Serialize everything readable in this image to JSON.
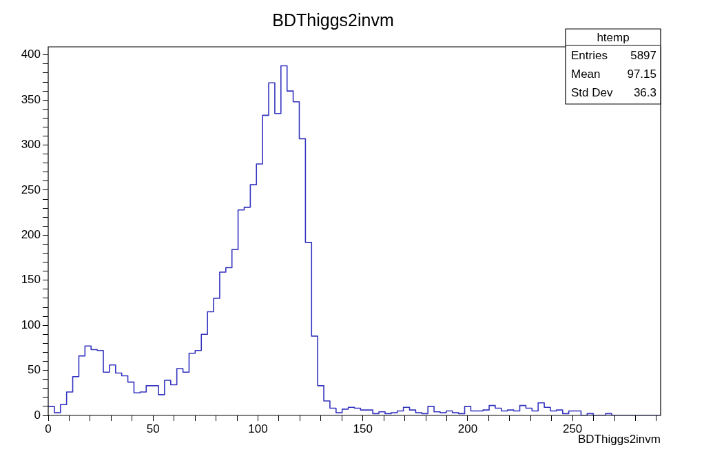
{
  "chart_data": {
    "type": "histogram",
    "title": "BDThiggs2invm",
    "xlabel": "BDThiggs2invm",
    "bins": [
      0,
      2.92,
      5.84,
      8.76,
      11.68,
      14.6,
      17.52,
      20.44,
      23.36,
      26.28,
      29.2,
      32.12,
      35.04,
      37.96,
      40.88,
      43.8,
      46.72,
      49.64,
      52.56,
      55.48,
      58.4,
      61.32,
      64.24,
      67.16,
      70.08,
      73,
      75.92,
      78.84,
      81.76,
      84.68,
      87.6,
      90.52,
      93.44,
      96.36,
      99.28,
      102.2,
      105.12,
      108.04,
      110.96,
      113.88,
      116.8,
      119.72,
      122.64,
      125.56,
      128.48,
      131.4,
      134.32,
      137.24,
      140.16,
      143.08,
      146,
      148.92,
      151.84,
      154.76,
      157.68,
      160.6,
      163.52,
      166.44,
      169.36,
      172.28,
      175.2,
      178.12,
      181.04,
      183.96,
      186.88,
      189.8,
      192.72,
      195.64,
      198.56,
      201.48,
      204.4,
      207.32,
      210.24,
      213.16,
      216.08,
      219,
      221.92,
      224.84,
      227.76,
      230.68,
      233.6,
      236.52,
      239.44,
      242.36,
      245.28,
      248.2,
      251.12,
      254.04,
      256.96,
      259.88,
      262.8,
      265.72,
      268.64,
      271.56,
      274.48,
      277.4,
      280.32,
      283.24,
      286.16,
      289.08,
      292
    ],
    "values": [
      10,
      3,
      12,
      26,
      43,
      66,
      77,
      73,
      72,
      48,
      56,
      47,
      44,
      37,
      25,
      26,
      33,
      33,
      23,
      39,
      34,
      52,
      48,
      69,
      72,
      90,
      115,
      130,
      159,
      164,
      184,
      228,
      231,
      256,
      279,
      333,
      369,
      335,
      388,
      360,
      348,
      307,
      192,
      88,
      33,
      16,
      8,
      3,
      7,
      9,
      8,
      6,
      6,
      2,
      4,
      2,
      3,
      5,
      9,
      6,
      3,
      2,
      10,
      4,
      3,
      5,
      3,
      2,
      10,
      5,
      5,
      6,
      11,
      8,
      5,
      6,
      5,
      11,
      8,
      5,
      14,
      9,
      5,
      6,
      2,
      5,
      5,
      0,
      2,
      0,
      0,
      2,
      0,
      0,
      0,
      0,
      0,
      0,
      0,
      0
    ],
    "color": "#3434c0",
    "xlim": [
      0,
      292
    ],
    "xticks": [
      0,
      {
        "value": 10,
        "label": null
      },
      {
        "value": 20,
        "label": null
      },
      {
        "value": 30,
        "label": null
      },
      {
        "value": 40,
        "label": null
      },
      50,
      {
        "value": 60,
        "label": null
      },
      {
        "value": 70,
        "label": null
      },
      {
        "value": 80,
        "label": null
      },
      {
        "value": 90,
        "label": null
      },
      100,
      {
        "value": 110,
        "label": null
      },
      {
        "value": 120,
        "label": null
      },
      {
        "value": 130,
        "label": null
      },
      {
        "value": 140,
        "label": null
      },
      150,
      {
        "value": 160,
        "label": null
      },
      {
        "value": 170,
        "label": null
      },
      {
        "value": 180,
        "label": null
      },
      {
        "value": 190,
        "label": null
      },
      200,
      {
        "value": 210,
        "label": null
      },
      {
        "value": 220,
        "label": null
      },
      {
        "value": 230,
        "label": null
      },
      {
        "value": 240,
        "label": null
      },
      250,
      {
        "value": 260,
        "label": null
      },
      {
        "value": 270,
        "label": null
      },
      {
        "value": 280,
        "label": null
      },
      {
        "value": 290,
        "label": null
      }
    ],
    "ylim": [
      0,
      409
    ],
    "yticks": [
      0,
      {
        "value": 10,
        "label": null
      },
      {
        "value": 20,
        "label": null
      },
      {
        "value": 30,
        "label": null
      },
      {
        "value": 40,
        "label": null
      },
      50,
      {
        "value": 60,
        "label": null
      },
      {
        "value": 70,
        "label": null
      },
      {
        "value": 80,
        "label": null
      },
      {
        "value": 90,
        "label": null
      },
      100,
      {
        "value": 110,
        "label": null
      },
      {
        "value": 120,
        "label": null
      },
      {
        "value": 130,
        "label": null
      },
      {
        "value": 140,
        "label": null
      },
      150,
      {
        "value": 160,
        "label": null
      },
      {
        "value": 170,
        "label": null
      },
      {
        "value": 180,
        "label": null
      },
      {
        "value": 190,
        "label": null
      },
      200,
      {
        "value": 210,
        "label": null
      },
      {
        "value": 220,
        "label": null
      },
      {
        "value": 230,
        "label": null
      },
      {
        "value": 240,
        "label": null
      },
      250,
      {
        "value": 260,
        "label": null
      },
      {
        "value": 270,
        "label": null
      },
      {
        "value": 280,
        "label": null
      },
      {
        "value": 290,
        "label": null
      },
      300,
      {
        "value": 310,
        "label": null
      },
      {
        "value": 320,
        "label": null
      },
      {
        "value": 330,
        "label": null
      },
      {
        "value": 340,
        "label": null
      },
      350,
      {
        "value": 360,
        "label": null
      },
      {
        "value": 370,
        "label": null
      },
      {
        "value": 380,
        "label": null
      },
      {
        "value": 390,
        "label": null
      },
      400
    ],
    "annotations": [
      "htemp",
      "Entries",
      "5897",
      "Mean",
      "97.15",
      "Std Dev",
      "36.3"
    ]
  }
}
